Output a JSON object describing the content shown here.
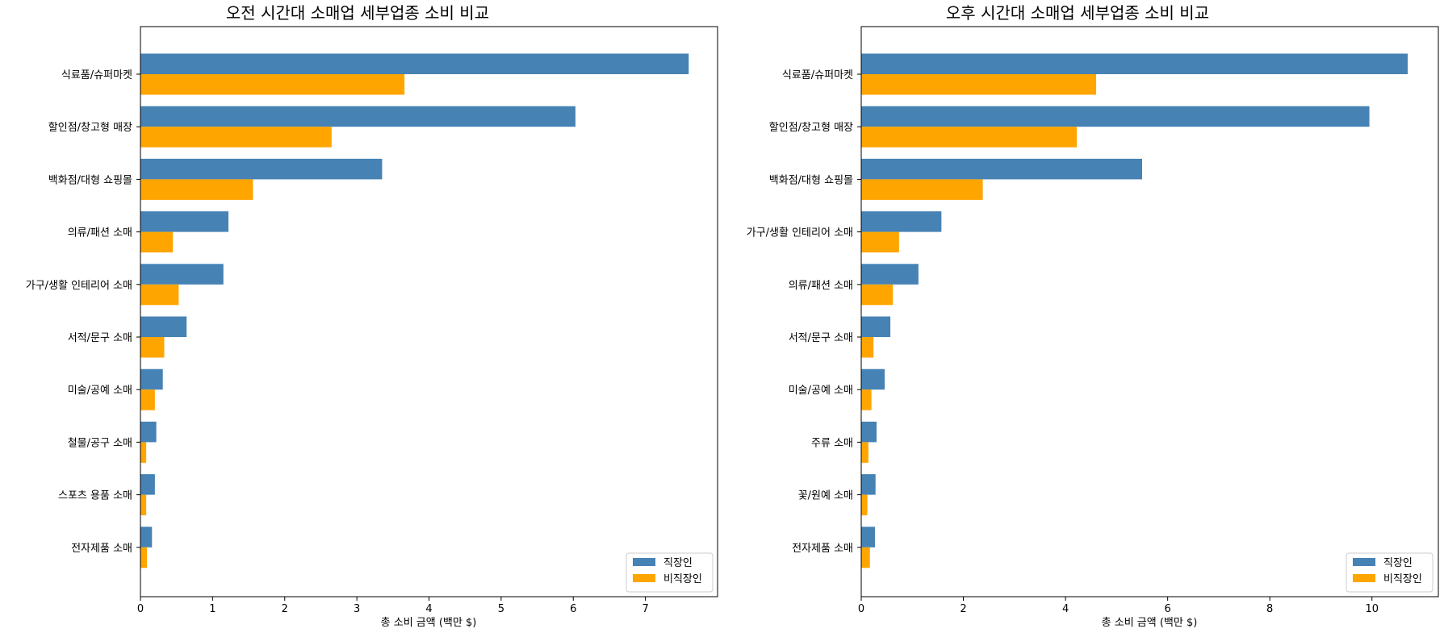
{
  "colors": {
    "series_0": "#4682B4",
    "series_1": "#FFA500"
  },
  "chart_data": [
    {
      "type": "bar",
      "orientation": "horizontal",
      "title": "오전 시간대 소매업 세부업종 소비 비교",
      "xlabel": "총 소비 금액 (백만 $)",
      "ylabel": "",
      "xlim": [
        0,
        8
      ],
      "xticks": [
        0,
        1,
        2,
        3,
        4,
        5,
        6,
        7
      ],
      "xtick_labels": [
        "0",
        "1",
        "2",
        "3",
        "4",
        "5",
        "6",
        "7"
      ],
      "categories": [
        "식료품/슈퍼마켓",
        "할인점/창고형 매장",
        "백화점/대형 쇼핑몰",
        "의류/패션 소매",
        "가구/생활 인테리어 소매",
        "서적/문구 소매",
        "미술/공예 소매",
        "철물/공구 소매",
        "스포츠 용품 소매",
        "전자제품 소매"
      ],
      "series": [
        {
          "name": "직장인",
          "values": [
            7.6,
            6.03,
            3.35,
            1.22,
            1.15,
            0.64,
            0.31,
            0.22,
            0.2,
            0.16
          ]
        },
        {
          "name": "비직장인",
          "values": [
            3.66,
            2.65,
            1.56,
            0.45,
            0.53,
            0.33,
            0.2,
            0.08,
            0.08,
            0.09
          ]
        }
      ],
      "legend": "lower-right",
      "grid": false
    },
    {
      "type": "bar",
      "orientation": "horizontal",
      "title": "오후 시간대 소매업 세부업종 소비 비교",
      "xlabel": "총 소비 금액 (백만 $)",
      "ylabel": "",
      "xlim": [
        0,
        11.3
      ],
      "xticks": [
        0,
        2,
        4,
        6,
        8,
        10
      ],
      "xtick_labels": [
        "0",
        "2",
        "4",
        "6",
        "8",
        "10"
      ],
      "categories": [
        "식료품/슈퍼마켓",
        "할인점/창고형 매장",
        "백화점/대형 쇼핑몰",
        "가구/생활 인테리어 소매",
        "의류/패션 소매",
        "서적/문구 소매",
        "미술/공예 소매",
        "주류 소매",
        "꽃/원예 소매",
        "전자제품 소매"
      ],
      "series": [
        {
          "name": "직장인",
          "values": [
            10.7,
            9.95,
            5.5,
            1.57,
            1.12,
            0.57,
            0.46,
            0.3,
            0.28,
            0.27
          ]
        },
        {
          "name": "비직장인",
          "values": [
            4.6,
            4.22,
            2.38,
            0.74,
            0.62,
            0.24,
            0.2,
            0.14,
            0.12,
            0.17
          ]
        }
      ],
      "legend": "lower-right",
      "grid": false
    }
  ]
}
